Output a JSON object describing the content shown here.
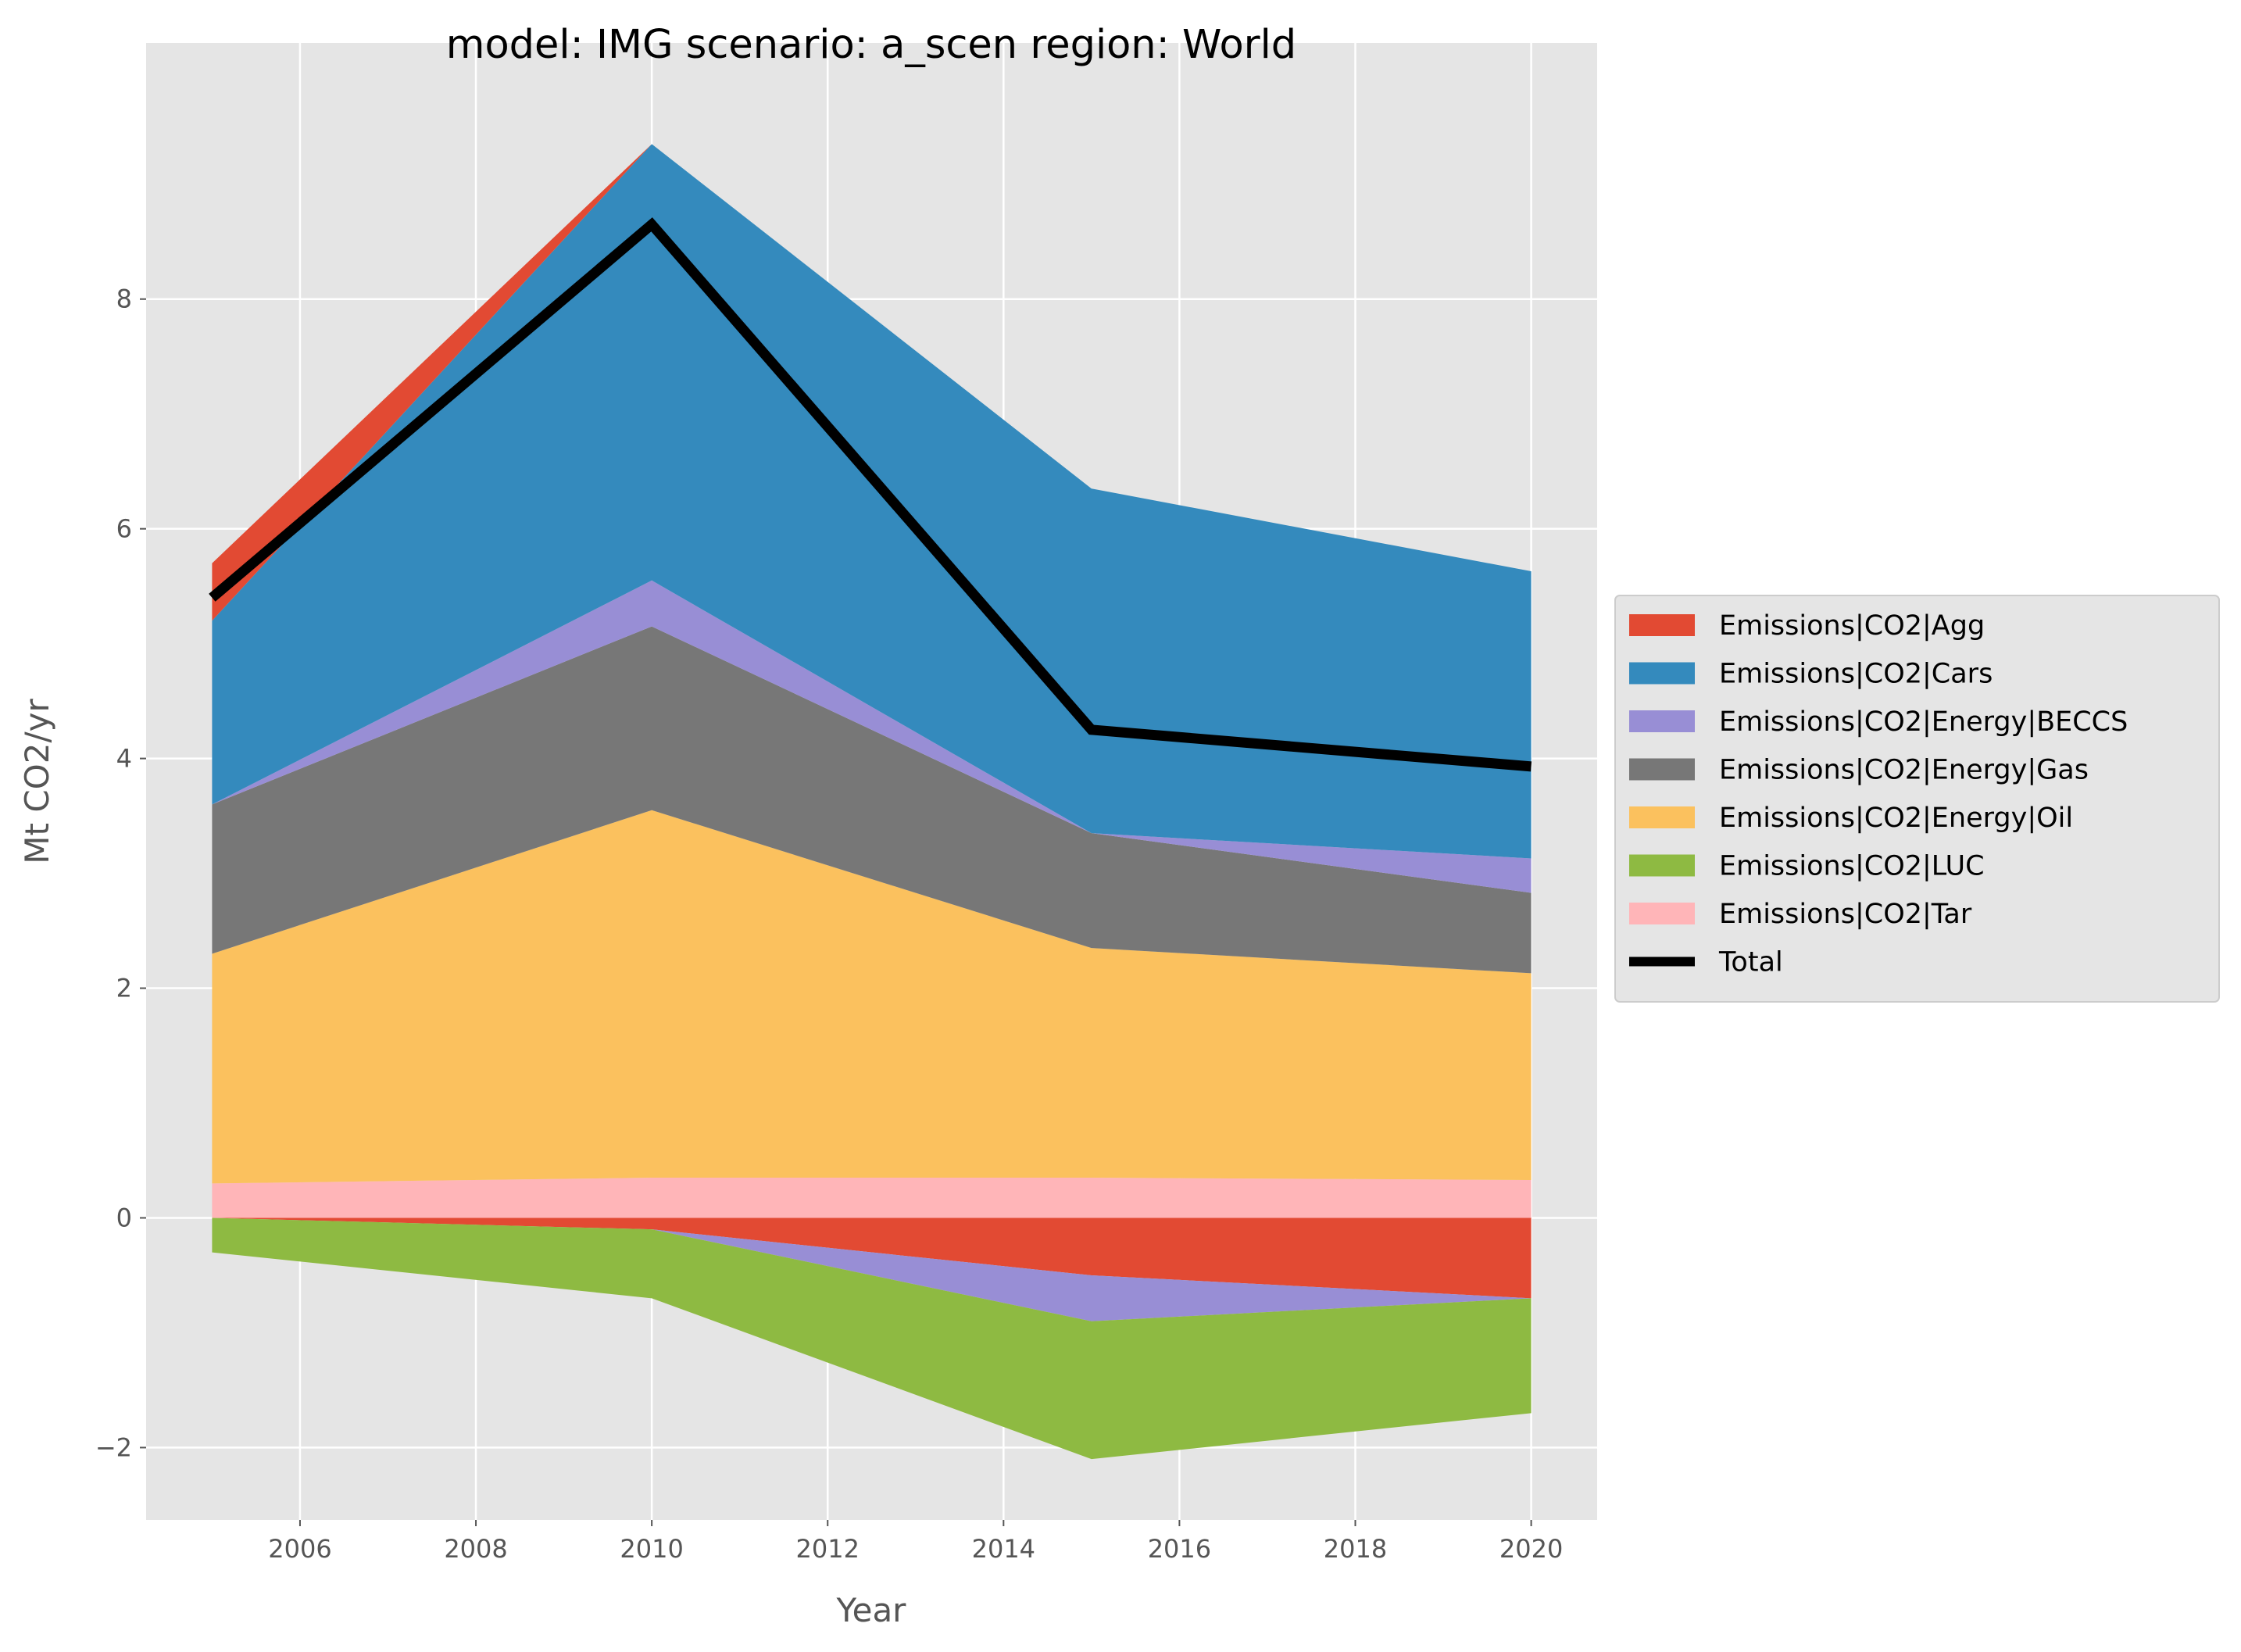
{
  "chart_data": {
    "type": "area",
    "title": "model: IMG scenario: a_scen region: World",
    "xlabel": "Year",
    "ylabel": "Mt CO2/yr",
    "xlim": [
      2004.25,
      2020.75
    ],
    "ylim": [
      -2.63,
      10.23
    ],
    "xticks": [
      2006,
      2008,
      2010,
      2012,
      2014,
      2016,
      2018,
      2020
    ],
    "yticks": [
      -2,
      0,
      2,
      4,
      6,
      8
    ],
    "grid": true,
    "legend_position": "right",
    "x": [
      2005,
      2010,
      2015,
      2020
    ],
    "positive_stack_order": [
      "Emissions|CO2|Tar",
      "Emissions|CO2|Energy|Oil",
      "Emissions|CO2|Energy|Gas",
      "Emissions|CO2|Energy|BECCS",
      "Emissions|CO2|Cars",
      "Emissions|CO2|Agg"
    ],
    "negative_stack_order": [
      "Emissions|CO2|Agg",
      "Emissions|CO2|Energy|BECCS",
      "Emissions|CO2|LUC"
    ],
    "series": [
      {
        "name": "Emissions|CO2|Agg",
        "color": "#E24A33",
        "values": [
          0.5,
          -0.1,
          -0.5,
          -0.7
        ]
      },
      {
        "name": "Emissions|CO2|Cars",
        "color": "#348ABD",
        "values": [
          1.6,
          3.8,
          3.0,
          2.5
        ]
      },
      {
        "name": "Emissions|CO2|Energy|BECCS",
        "color": "#988ED5",
        "values": [
          0.0,
          0.4,
          -0.4,
          0.3
        ]
      },
      {
        "name": "Emissions|CO2|Energy|Gas",
        "color": "#777777",
        "values": [
          1.3,
          1.6,
          1.0,
          0.7
        ]
      },
      {
        "name": "Emissions|CO2|Energy|Oil",
        "color": "#FBC15E",
        "values": [
          2.0,
          3.2,
          2.0,
          1.8
        ]
      },
      {
        "name": "Emissions|CO2|LUC",
        "color": "#8EBA42",
        "values": [
          -0.3,
          -0.6,
          -1.2,
          -1.0
        ]
      },
      {
        "name": "Emissions|CO2|Tar",
        "color": "#FFB5B8",
        "values": [
          0.3,
          0.35,
          0.35,
          0.33
        ]
      }
    ],
    "total": {
      "name": "Total",
      "color": "#000000",
      "values": [
        5.4,
        8.65,
        4.25,
        3.93
      ]
    }
  }
}
